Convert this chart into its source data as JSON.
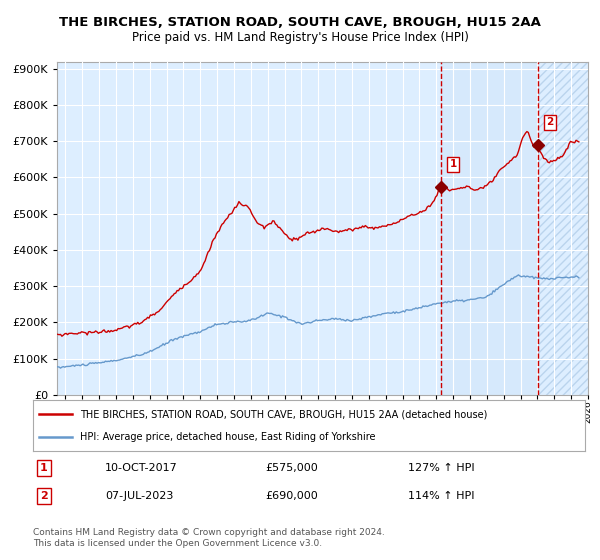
{
  "title": "THE BIRCHES, STATION ROAD, SOUTH CAVE, BROUGH, HU15 2AA",
  "subtitle": "Price paid vs. HM Land Registry's House Price Index (HPI)",
  "legend_line1": "THE BIRCHES, STATION ROAD, SOUTH CAVE, BROUGH, HU15 2AA (detached house)",
  "legend_line2": "HPI: Average price, detached house, East Riding of Yorkshire",
  "transaction1_date": "10-OCT-2017",
  "transaction1_price": 575000,
  "transaction1_hpi": "127% ↑ HPI",
  "transaction2_date": "07-JUL-2023",
  "transaction2_price": 690000,
  "transaction2_hpi": "114% ↑ HPI",
  "background_color": "#ffffff",
  "plot_bg_color": "#ddeeff",
  "grid_color": "#ffffff",
  "hpi_line_color": "#6699cc",
  "price_line_color": "#cc0000",
  "vline_color": "#cc0000",
  "marker_color": "#8b0000",
  "footnote1": "Contains HM Land Registry data © Crown copyright and database right 2024.",
  "footnote2": "This data is licensed under the Open Government Licence v3.0.",
  "hpi_keypoints": [
    [
      1995.0,
      75000
    ],
    [
      1996.0,
      80000
    ],
    [
      1997.0,
      85000
    ],
    [
      1998.5,
      95000
    ],
    [
      2000.0,
      110000
    ],
    [
      2001.0,
      130000
    ],
    [
      2002.0,
      155000
    ],
    [
      2003.5,
      175000
    ],
    [
      2004.5,
      195000
    ],
    [
      2005.5,
      200000
    ],
    [
      2006.5,
      205000
    ],
    [
      2007.5,
      225000
    ],
    [
      2008.5,
      215000
    ],
    [
      2009.5,
      195000
    ],
    [
      2010.5,
      205000
    ],
    [
      2011.5,
      210000
    ],
    [
      2012.5,
      205000
    ],
    [
      2013.5,
      215000
    ],
    [
      2014.5,
      225000
    ],
    [
      2015.5,
      230000
    ],
    [
      2016.5,
      240000
    ],
    [
      2017.5,
      252000
    ],
    [
      2018.5,
      258000
    ],
    [
      2019.5,
      262000
    ],
    [
      2020.5,
      270000
    ],
    [
      2021.5,
      305000
    ],
    [
      2022.3,
      330000
    ],
    [
      2023.0,
      325000
    ],
    [
      2024.0,
      320000
    ],
    [
      2025.5,
      325000
    ]
  ],
  "prop_keypoints": [
    [
      1995.0,
      165000
    ],
    [
      1996.0,
      170000
    ],
    [
      1997.0,
      172000
    ],
    [
      1998.5,
      178000
    ],
    [
      2000.0,
      200000
    ],
    [
      2001.0,
      230000
    ],
    [
      2002.0,
      280000
    ],
    [
      2003.5,
      340000
    ],
    [
      2004.2,
      420000
    ],
    [
      2004.8,
      470000
    ],
    [
      2005.3,
      500000
    ],
    [
      2005.8,
      530000
    ],
    [
      2006.3,
      520000
    ],
    [
      2006.8,
      480000
    ],
    [
      2007.3,
      460000
    ],
    [
      2007.8,
      480000
    ],
    [
      2008.3,
      455000
    ],
    [
      2008.8,
      430000
    ],
    [
      2009.3,
      430000
    ],
    [
      2009.8,
      445000
    ],
    [
      2010.3,
      450000
    ],
    [
      2010.8,
      460000
    ],
    [
      2011.3,
      455000
    ],
    [
      2011.8,
      450000
    ],
    [
      2012.3,
      455000
    ],
    [
      2012.8,
      460000
    ],
    [
      2013.3,
      465000
    ],
    [
      2013.8,
      460000
    ],
    [
      2014.3,
      465000
    ],
    [
      2014.8,
      470000
    ],
    [
      2015.3,
      480000
    ],
    [
      2015.8,
      490000
    ],
    [
      2016.3,
      500000
    ],
    [
      2016.8,
      510000
    ],
    [
      2017.3,
      530000
    ],
    [
      2017.8,
      575000
    ],
    [
      2018.3,
      565000
    ],
    [
      2018.8,
      570000
    ],
    [
      2019.3,
      575000
    ],
    [
      2019.8,
      565000
    ],
    [
      2020.3,
      570000
    ],
    [
      2020.8,
      590000
    ],
    [
      2021.3,
      620000
    ],
    [
      2021.8,
      640000
    ],
    [
      2022.0,
      650000
    ],
    [
      2022.3,
      660000
    ],
    [
      2022.6,
      710000
    ],
    [
      2022.9,
      730000
    ],
    [
      2023.0,
      720000
    ],
    [
      2023.2,
      690000
    ],
    [
      2023.5,
      680000
    ],
    [
      2023.8,
      660000
    ],
    [
      2024.2,
      640000
    ],
    [
      2024.6,
      650000
    ],
    [
      2025.0,
      660000
    ],
    [
      2025.5,
      700000
    ]
  ],
  "t1_year": 2017.786,
  "t2_year": 2023.542,
  "t1_price": 575000,
  "t2_price": 690000,
  "xlim": [
    1995,
    2026.5
  ],
  "ylim": [
    0,
    920000
  ],
  "yticks": [
    0,
    100000,
    200000,
    300000,
    400000,
    500000,
    600000,
    700000,
    800000,
    900000
  ]
}
